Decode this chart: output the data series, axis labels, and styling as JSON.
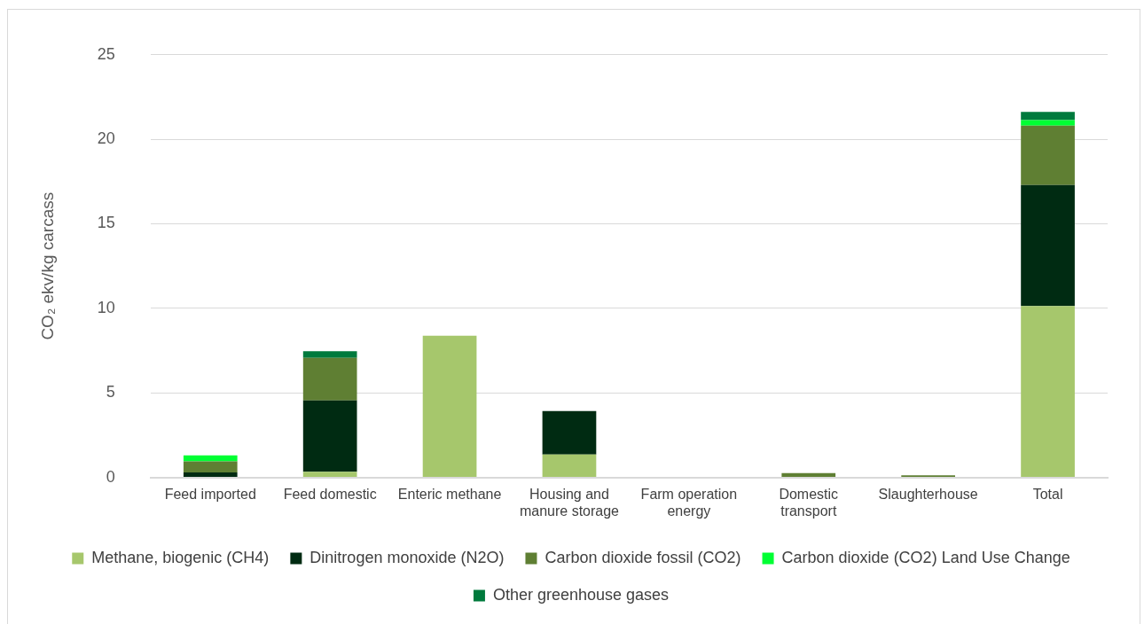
{
  "chart_data": {
    "type": "bar",
    "stacked": true,
    "ylabel": "CO₂ ekv/kg carcass",
    "categories": [
      "Feed imported",
      "Feed domestic",
      "Enteric methane",
      "Housing and manure storage",
      "Farm operation energy",
      "Domestic transport",
      "Slaughterhouse",
      "Total"
    ],
    "series": [
      {
        "name": "Methane, biogenic (CH4)",
        "color": "#a6c76c",
        "values": [
          0,
          0.33,
          8.38,
          1.36,
          0,
          0,
          0,
          10.14
        ]
      },
      {
        "name": "Dinitrogen monoxide (N2O)",
        "color": "#002b12",
        "values": [
          0.3,
          4.23,
          0,
          2.56,
          0,
          0,
          0,
          7.15
        ]
      },
      {
        "name": "Carbon dioxide fossil (CO2)",
        "color": "#5f7f33",
        "values": [
          0.65,
          2.51,
          0,
          0,
          0,
          0.26,
          0.12,
          3.52
        ]
      },
      {
        "name": "Carbon dioxide (CO2) Land Use Change",
        "color": "#00ff33",
        "values": [
          0.35,
          0,
          0,
          0,
          0,
          0,
          0,
          0.33
        ]
      },
      {
        "name": "Other greenhouse gases",
        "color": "#007a3d",
        "values": [
          0,
          0.39,
          0,
          0,
          0,
          0,
          0,
          0.48
        ]
      }
    ],
    "ylim": [
      0,
      25
    ],
    "yticks": [
      0,
      5,
      10,
      15,
      20,
      25
    ],
    "grid": "y",
    "legend": "bottom"
  }
}
